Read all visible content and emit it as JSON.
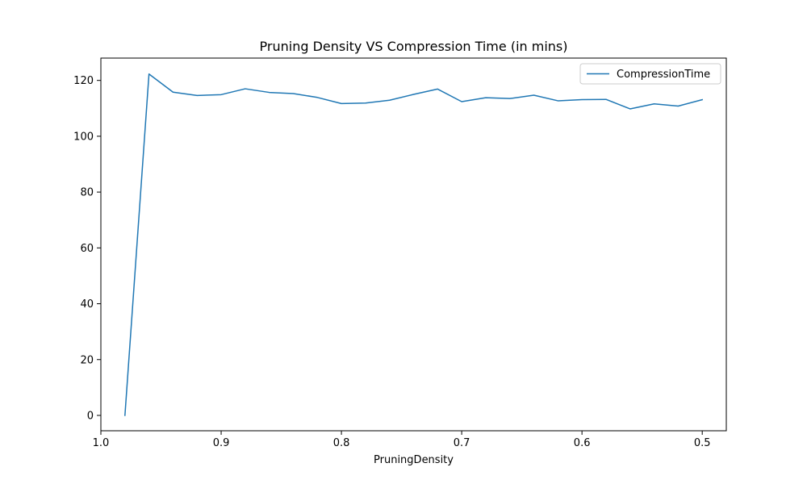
{
  "chart_data": {
    "type": "line",
    "title": "Pruning Density VS Compression Time (in mins)",
    "xlabel": "PruningDensity",
    "ylabel": "",
    "x_inverted": true,
    "xlim": [
      1.0,
      0.48
    ],
    "ylim": [
      -5.5,
      128
    ],
    "xticks": [
      1.0,
      0.9,
      0.8,
      0.7,
      0.6,
      0.5
    ],
    "xtick_labels": [
      "1.0",
      "0.9",
      "0.8",
      "0.7",
      "0.6",
      "0.5"
    ],
    "yticks": [
      0,
      20,
      40,
      60,
      80,
      100,
      120
    ],
    "ytick_labels": [
      "0",
      "20",
      "40",
      "60",
      "80",
      "100",
      "120"
    ],
    "grid": false,
    "legend_placement": "top-right",
    "series": [
      {
        "name": "CompressionTime",
        "color": "#1f77b4",
        "x": [
          0.98,
          0.96,
          0.94,
          0.92,
          0.9,
          0.88,
          0.86,
          0.84,
          0.82,
          0.8,
          0.78,
          0.76,
          0.74,
          0.72,
          0.7,
          0.68,
          0.66,
          0.64,
          0.62,
          0.6,
          0.58,
          0.56,
          0.54,
          0.52,
          0.5
        ],
        "values": [
          0,
          122.3,
          115.8,
          114.6,
          114.9,
          117.0,
          115.7,
          115.3,
          113.9,
          111.7,
          111.9,
          112.9,
          115.0,
          116.9,
          112.4,
          113.8,
          113.5,
          114.7,
          112.7,
          113.1,
          113.2,
          109.8,
          111.6,
          110.8,
          113.1
        ]
      }
    ]
  }
}
